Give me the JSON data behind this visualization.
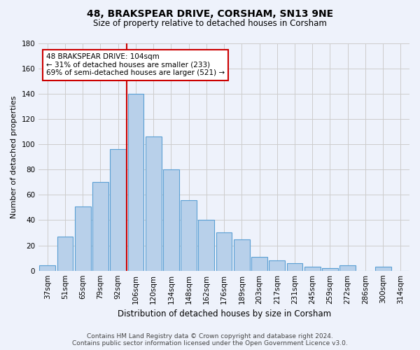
{
  "title": "48, BRAKSPEAR DRIVE, CORSHAM, SN13 9NE",
  "subtitle": "Size of property relative to detached houses in Corsham",
  "xlabel": "Distribution of detached houses by size in Corsham",
  "ylabel": "Number of detached properties",
  "categories": [
    "37sqm",
    "51sqm",
    "65sqm",
    "79sqm",
    "92sqm",
    "106sqm",
    "120sqm",
    "134sqm",
    "148sqm",
    "162sqm",
    "176sqm",
    "189sqm",
    "203sqm",
    "217sqm",
    "231sqm",
    "245sqm",
    "259sqm",
    "272sqm",
    "286sqm",
    "300sqm",
    "314sqm"
  ],
  "values": [
    4,
    27,
    51,
    70,
    96,
    140,
    106,
    80,
    56,
    40,
    30,
    25,
    11,
    8,
    6,
    3,
    2,
    4,
    0,
    3,
    0
  ],
  "bar_color": "#b8d0ea",
  "bar_edge_color": "#5a9fd4",
  "vline_color": "#cc0000",
  "vline_x_index": 5,
  "annotation_text": "48 BRAKSPEAR DRIVE: 104sqm\n← 31% of detached houses are smaller (233)\n69% of semi-detached houses are larger (521) →",
  "annotation_box_color": "#ffffff",
  "annotation_box_edge": "#cc0000",
  "ylim": [
    0,
    180
  ],
  "yticks": [
    0,
    20,
    40,
    60,
    80,
    100,
    120,
    140,
    160,
    180
  ],
  "grid_color": "#cccccc",
  "background_color": "#eef2fb",
  "footer_line1": "Contains HM Land Registry data © Crown copyright and database right 2024.",
  "footer_line2": "Contains public sector information licensed under the Open Government Licence v3.0.",
  "title_fontsize": 10,
  "subtitle_fontsize": 8.5,
  "xlabel_fontsize": 8.5,
  "ylabel_fontsize": 8,
  "tick_fontsize": 7.5,
  "annotation_fontsize": 7.5,
  "footer_fontsize": 6.5
}
